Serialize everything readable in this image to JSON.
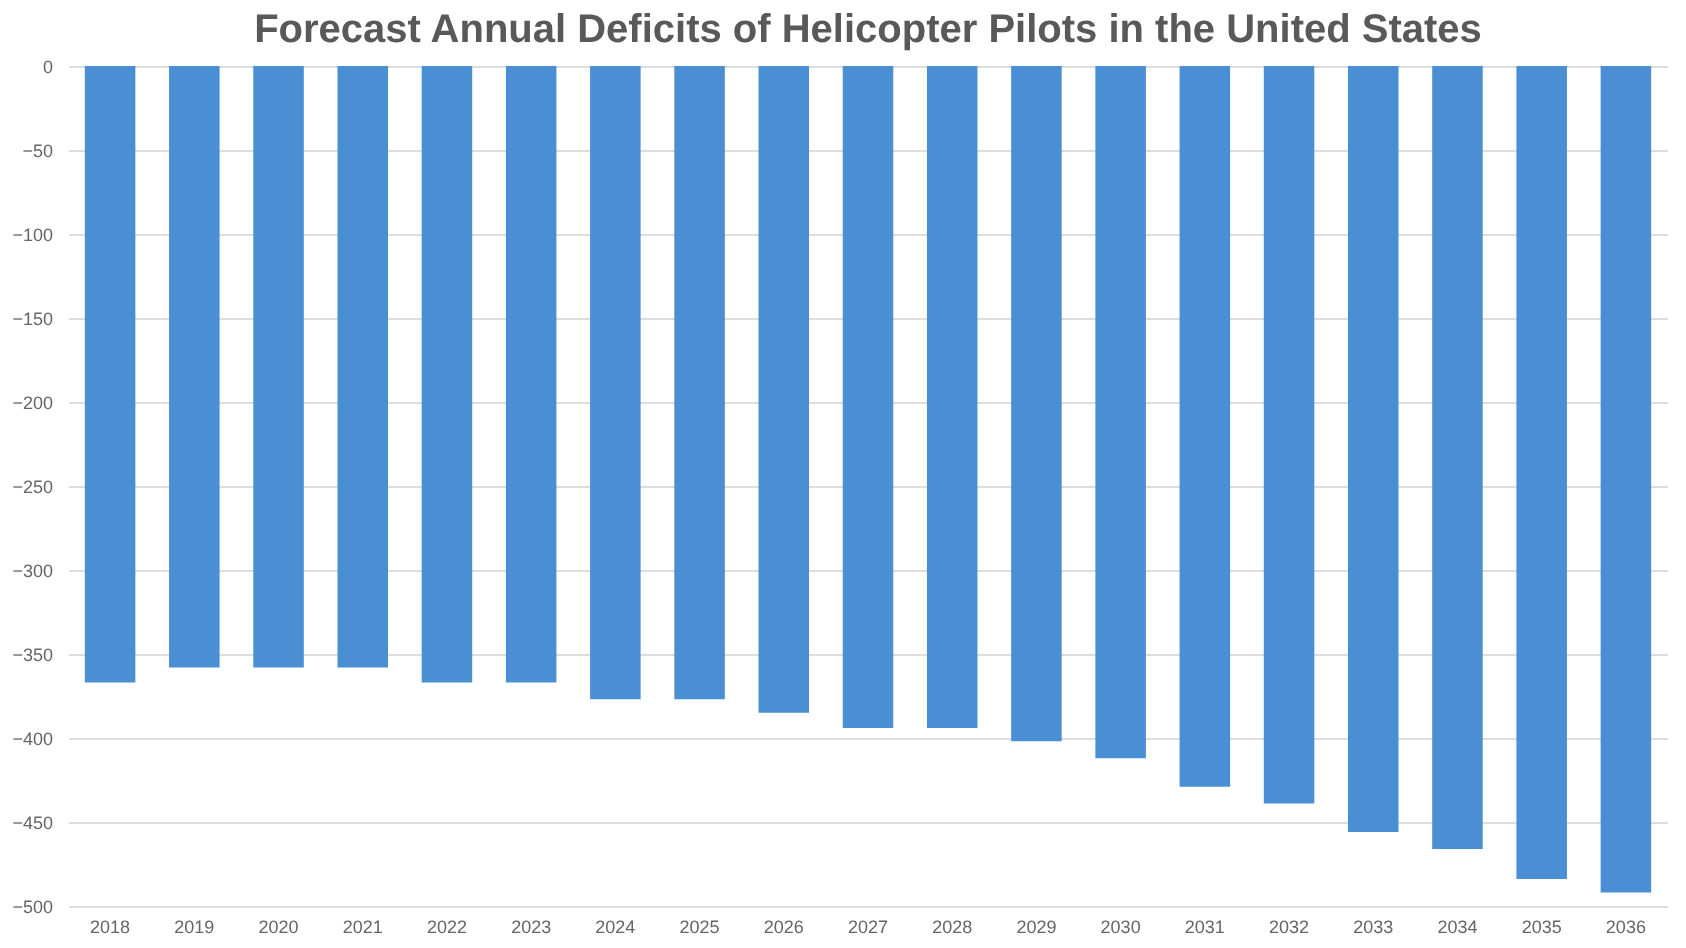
{
  "chart_data": {
    "type": "bar",
    "title": "Forecast Annual Deficits of Helicopter Pilots in the United States",
    "categories": [
      "2018",
      "2019",
      "2020",
      "2021",
      "2022",
      "2023",
      "2024",
      "2025",
      "2026",
      "2027",
      "2028",
      "2029",
      "2030",
      "2031",
      "2032",
      "2033",
      "2034",
      "2035",
      "2036"
    ],
    "values": [
      -367,
      -358,
      -358,
      -358,
      -367,
      -367,
      -377,
      -377,
      -385,
      -394,
      -394,
      -402,
      -412,
      -429,
      -439,
      -456,
      -466,
      -484,
      -492
    ],
    "color": "#4a8fd4",
    "ylim": [
      -500,
      0
    ],
    "yticks": [
      -500,
      -450,
      -400,
      -350,
      -300,
      -250,
      -200,
      -150,
      -100,
      -50,
      0
    ],
    "grid": "y"
  }
}
